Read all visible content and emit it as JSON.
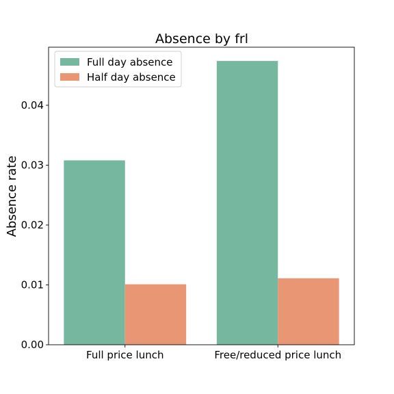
{
  "chart_data": {
    "type": "bar",
    "title": "Absence by frl",
    "xlabel": "",
    "ylabel": "Absence rate",
    "categories": [
      "Full price lunch",
      "Free/reduced price lunch"
    ],
    "series": [
      {
        "name": "Full day absence",
        "color": "#76b7a0",
        "values": [
          0.0308,
          0.0474
        ]
      },
      {
        "name": "Half day absence",
        "color": "#e99674",
        "values": [
          0.0101,
          0.0111
        ]
      }
    ],
    "ylim": [
      0,
      0.0497
    ],
    "yticks": [
      0.0,
      0.01,
      0.02,
      0.03,
      0.04
    ],
    "ytick_labels": [
      "0.00",
      "0.01",
      "0.02",
      "0.03",
      "0.04"
    ],
    "grid": false,
    "legend": "upper-left"
  }
}
